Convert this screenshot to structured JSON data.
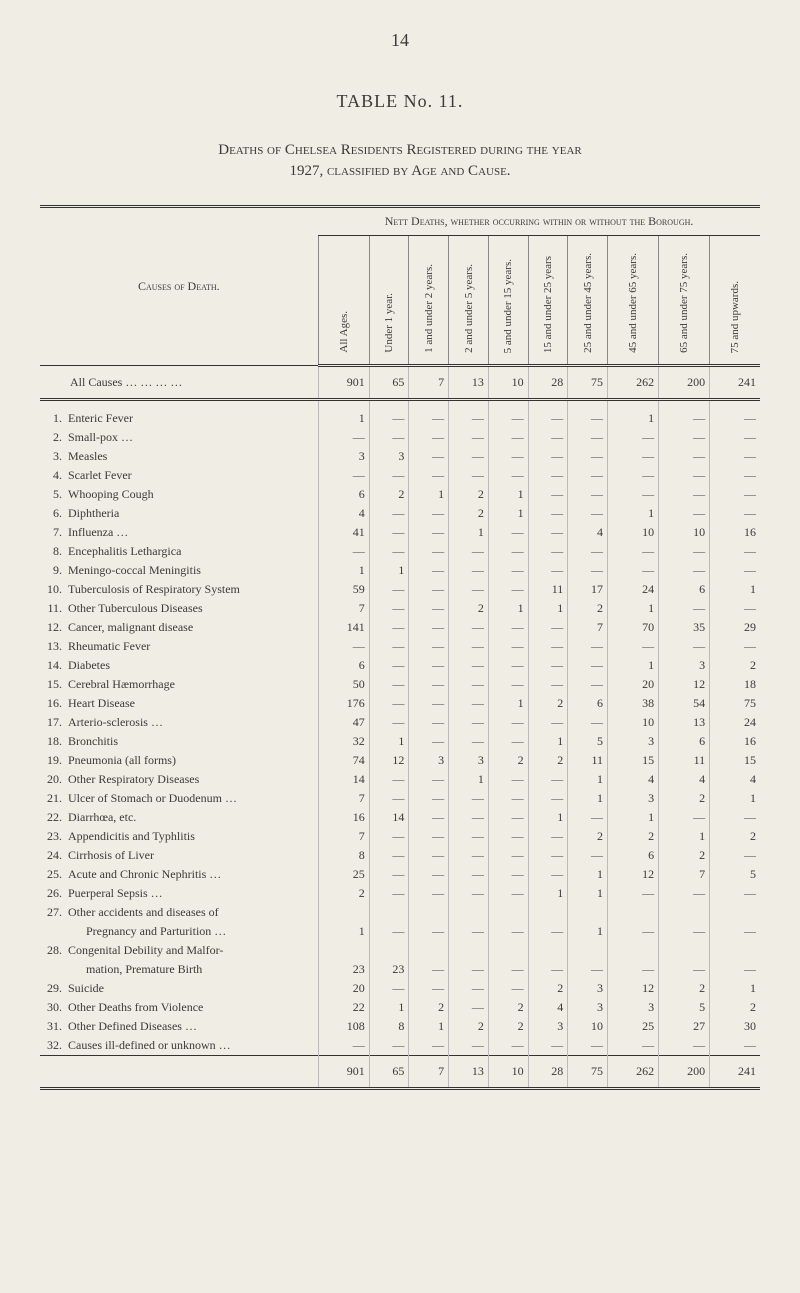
{
  "page_number": "14",
  "table_title": "TABLE No. 11.",
  "subtitle1": "Deaths of Chelsea Residents Registered during the year",
  "subtitle2": "1927, classified by Age and Cause.",
  "super_header": "Nett Deaths, whether occurring within or without the Borough.",
  "causes_header": "Causes of Death.",
  "column_headers": [
    "All Ages.",
    "Under 1 year.",
    "1 and under 2 years.",
    "2 and under 5 years.",
    "5 and under 15 years.",
    "15 and under 25 years",
    "25 and under 45 years.",
    "45 and under 65 years.",
    "65 and under 75 years.",
    "75 and upwards."
  ],
  "all_causes": {
    "label": "All Causes",
    "values": [
      "901",
      "65",
      "7",
      "13",
      "10",
      "28",
      "75",
      "262",
      "200",
      "241"
    ]
  },
  "rows": [
    {
      "num": "1.",
      "label": "Enteric Fever",
      "values": [
        "1",
        "—",
        "—",
        "—",
        "—",
        "—",
        "—",
        "1",
        "—",
        "—"
      ]
    },
    {
      "num": "2.",
      "label": "Small-pox …",
      "values": [
        "—",
        "—",
        "—",
        "—",
        "—",
        "—",
        "—",
        "—",
        "—",
        "—"
      ]
    },
    {
      "num": "3.",
      "label": "Measles",
      "values": [
        "3",
        "3",
        "—",
        "—",
        "—",
        "—",
        "—",
        "—",
        "—",
        "—"
      ]
    },
    {
      "num": "4.",
      "label": "Scarlet Fever",
      "values": [
        "—",
        "—",
        "—",
        "—",
        "—",
        "—",
        "—",
        "—",
        "—",
        "—"
      ]
    },
    {
      "num": "5.",
      "label": "Whooping Cough",
      "values": [
        "6",
        "2",
        "1",
        "2",
        "1",
        "—",
        "—",
        "—",
        "—",
        "—"
      ]
    },
    {
      "num": "6.",
      "label": "Diphtheria",
      "values": [
        "4",
        "—",
        "—",
        "2",
        "1",
        "—",
        "—",
        "1",
        "—",
        "—"
      ]
    },
    {
      "num": "7.",
      "label": "Influenza …",
      "values": [
        "41",
        "—",
        "—",
        "1",
        "—",
        "—",
        "4",
        "10",
        "10",
        "16"
      ]
    },
    {
      "num": "8.",
      "label": "Encephalitis Lethargica",
      "values": [
        "—",
        "—",
        "—",
        "—",
        "—",
        "—",
        "—",
        "—",
        "—",
        "—"
      ]
    },
    {
      "num": "9.",
      "label": "Meningo-coccal Meningitis",
      "values": [
        "1",
        "1",
        "—",
        "—",
        "—",
        "—",
        "—",
        "—",
        "—",
        "—"
      ]
    },
    {
      "num": "10.",
      "label": "Tuberculosis of Respiratory System",
      "values": [
        "59",
        "—",
        "—",
        "—",
        "—",
        "11",
        "17",
        "24",
        "6",
        "1"
      ]
    },
    {
      "num": "11.",
      "label": "Other Tuberculous Diseases",
      "values": [
        "7",
        "—",
        "—",
        "2",
        "1",
        "1",
        "2",
        "1",
        "—",
        "—"
      ]
    },
    {
      "num": "12.",
      "label": "Cancer, malignant disease",
      "values": [
        "141",
        "—",
        "—",
        "—",
        "—",
        "—",
        "7",
        "70",
        "35",
        "29"
      ]
    },
    {
      "num": "13.",
      "label": "Rheumatic Fever",
      "values": [
        "—",
        "—",
        "—",
        "—",
        "—",
        "—",
        "—",
        "—",
        "—",
        "—"
      ]
    },
    {
      "num": "14.",
      "label": "Diabetes",
      "values": [
        "6",
        "—",
        "—",
        "—",
        "—",
        "—",
        "—",
        "1",
        "3",
        "2"
      ]
    },
    {
      "num": "15.",
      "label": "Cerebral Hæmorrhage",
      "values": [
        "50",
        "—",
        "—",
        "—",
        "—",
        "—",
        "—",
        "20",
        "12",
        "18"
      ]
    },
    {
      "num": "16.",
      "label": "Heart Disease",
      "values": [
        "176",
        "—",
        "—",
        "—",
        "1",
        "2",
        "6",
        "38",
        "54",
        "75"
      ]
    },
    {
      "num": "17.",
      "label": "Arterio-sclerosis …",
      "values": [
        "47",
        "—",
        "—",
        "—",
        "—",
        "—",
        "—",
        "10",
        "13",
        "24"
      ]
    },
    {
      "num": "18.",
      "label": "Bronchitis",
      "values": [
        "32",
        "1",
        "—",
        "—",
        "—",
        "1",
        "5",
        "3",
        "6",
        "16"
      ]
    },
    {
      "num": "19.",
      "label": "Pneumonia (all forms)",
      "values": [
        "74",
        "12",
        "3",
        "3",
        "2",
        "2",
        "11",
        "15",
        "11",
        "15"
      ]
    },
    {
      "num": "20.",
      "label": "Other Respiratory Diseases",
      "values": [
        "14",
        "—",
        "—",
        "1",
        "—",
        "—",
        "1",
        "4",
        "4",
        "4"
      ]
    },
    {
      "num": "21.",
      "label": "Ulcer of Stomach or Duodenum …",
      "values": [
        "7",
        "—",
        "—",
        "—",
        "—",
        "—",
        "1",
        "3",
        "2",
        "1"
      ]
    },
    {
      "num": "22.",
      "label": "Diarrhœa, etc.",
      "values": [
        "16",
        "14",
        "—",
        "—",
        "—",
        "1",
        "—",
        "1",
        "—",
        "—"
      ]
    },
    {
      "num": "23.",
      "label": "Appendicitis and Typhlitis",
      "values": [
        "7",
        "—",
        "—",
        "—",
        "—",
        "—",
        "2",
        "2",
        "1",
        "2"
      ]
    },
    {
      "num": "24.",
      "label": "Cirrhosis of Liver",
      "values": [
        "8",
        "—",
        "—",
        "—",
        "—",
        "—",
        "—",
        "6",
        "2",
        "—"
      ]
    },
    {
      "num": "25.",
      "label": "Acute and Chronic Nephritis …",
      "values": [
        "25",
        "—",
        "—",
        "—",
        "—",
        "—",
        "1",
        "12",
        "7",
        "5"
      ]
    },
    {
      "num": "26.",
      "label": "Puerperal Sepsis …",
      "values": [
        "2",
        "—",
        "—",
        "—",
        "—",
        "1",
        "1",
        "—",
        "—",
        "—"
      ]
    },
    {
      "num": "27.",
      "label": "Other accidents and diseases of",
      "values": [
        "",
        "",
        "",
        "",
        "",
        "",
        "",
        "",
        "",
        ""
      ]
    },
    {
      "num": "",
      "label": "      Pregnancy and Parturition …",
      "values": [
        "1",
        "—",
        "—",
        "—",
        "—",
        "—",
        "1",
        "—",
        "—",
        "—"
      ]
    },
    {
      "num": "28.",
      "label": "Congenital Debility and Malfor-",
      "values": [
        "",
        "",
        "",
        "",
        "",
        "",
        "",
        "",
        "",
        ""
      ]
    },
    {
      "num": "",
      "label": "      mation, Premature Birth",
      "values": [
        "23",
        "23",
        "—",
        "—",
        "—",
        "—",
        "—",
        "—",
        "—",
        "—"
      ]
    },
    {
      "num": "29.",
      "label": "Suicide",
      "values": [
        "20",
        "—",
        "—",
        "—",
        "—",
        "2",
        "3",
        "12",
        "2",
        "1"
      ]
    },
    {
      "num": "30.",
      "label": "Other Deaths from Violence",
      "values": [
        "22",
        "1",
        "2",
        "—",
        "2",
        "4",
        "3",
        "3",
        "5",
        "2"
      ]
    },
    {
      "num": "31.",
      "label": "Other Defined Diseases …",
      "values": [
        "108",
        "8",
        "1",
        "2",
        "2",
        "3",
        "10",
        "25",
        "27",
        "30"
      ]
    },
    {
      "num": "32.",
      "label": "Causes ill-defined or unknown …",
      "values": [
        "—",
        "—",
        "—",
        "—",
        "—",
        "—",
        "—",
        "—",
        "—",
        "—"
      ]
    }
  ],
  "totals": [
    "901",
    "65",
    "7",
    "13",
    "10",
    "28",
    "75",
    "262",
    "200",
    "241"
  ]
}
